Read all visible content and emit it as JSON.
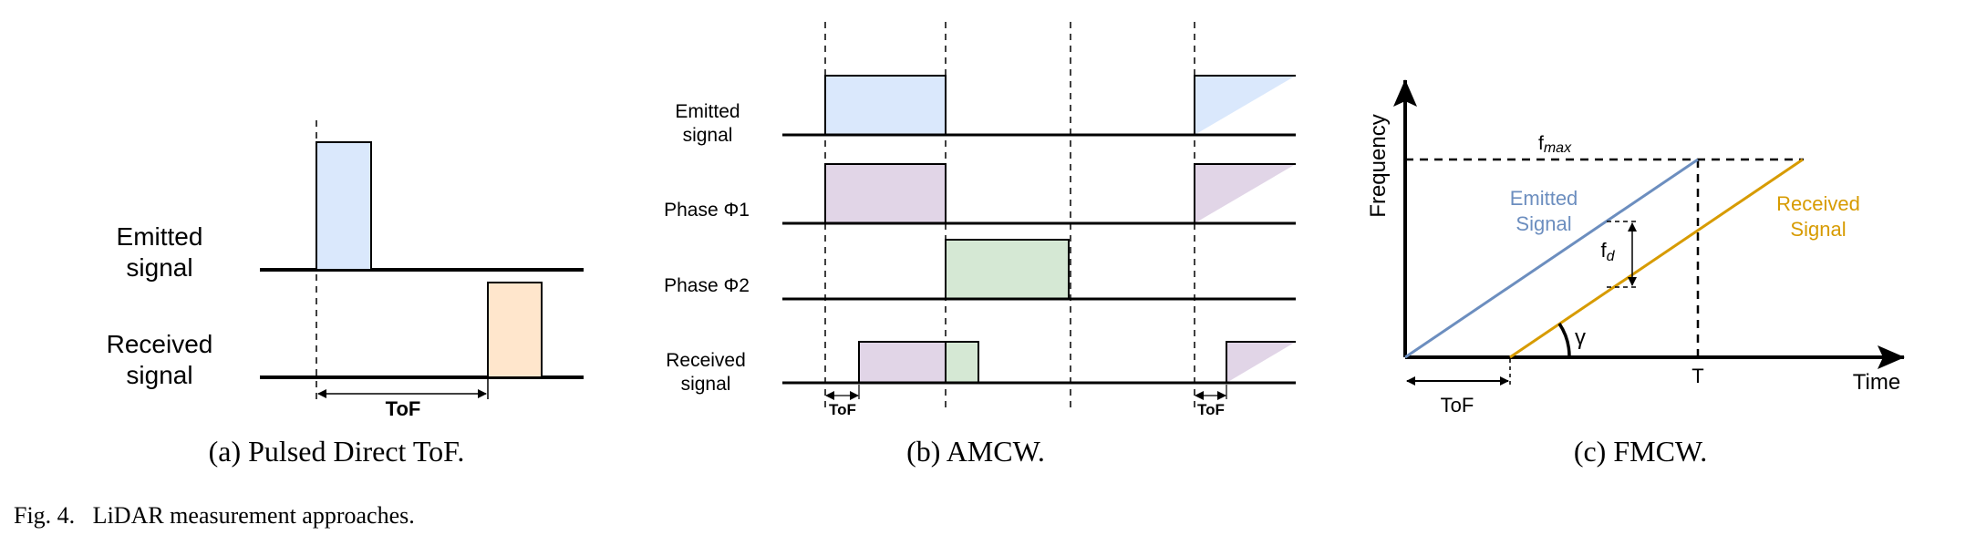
{
  "panel_a": {
    "emitted_line1": "Emitted",
    "emitted_line2": "signal",
    "received_line1": "Received",
    "received_line2": "signal",
    "tof": "ToF",
    "caption": "(a) Pulsed Direct ToF."
  },
  "panel_b": {
    "emitted_line1": "Emitted",
    "emitted_line2": "signal",
    "phase1": "Phase Φ1",
    "phase2": "Phase Φ2",
    "received_line1": "Received",
    "received_line2": "signal",
    "tof_left": "ToF",
    "tof_right": "ToF",
    "caption": "(b) AMCW."
  },
  "panel_c": {
    "y_axis": "Frequency",
    "x_axis": "Time",
    "fmax_base": "f",
    "fmax_sub": "max",
    "emitted_line1": "Emitted",
    "emitted_line2": "Signal",
    "received_line1": "Received",
    "received_line2": "Signal",
    "fd_base": "f",
    "fd_sub": "d",
    "gamma": "γ",
    "t_tick": "T",
    "tof": "ToF",
    "caption": "(c) FMCW."
  },
  "figure_caption": "Fig. 4.   LiDAR measurement approaches.",
  "colors": {
    "emitted_fill": "#dae8fc",
    "received_fill_a": "#ffe6cc",
    "phase_fill": "#e1d5e7",
    "phase2_fill": "#d5e8d4",
    "emitted_line": "#6c8ebf",
    "received_line": "#d79b00"
  }
}
